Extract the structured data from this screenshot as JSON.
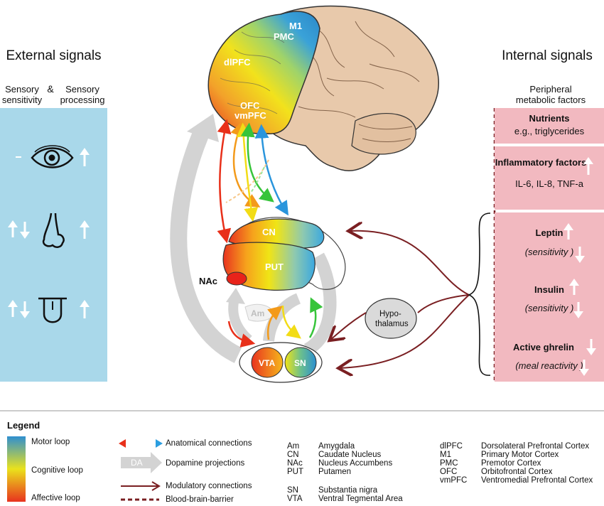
{
  "external": {
    "title": "External signals",
    "col1": "Sensory sensitivity",
    "amp": "&",
    "col2": "Sensory processing",
    "rows": [
      {
        "icon": "eye-icon",
        "left": "–",
        "right": "up"
      },
      {
        "icon": "nose-icon",
        "left": "up-down",
        "right": "up"
      },
      {
        "icon": "tongue-icon",
        "left": "up-down",
        "right": "up"
      }
    ]
  },
  "internal": {
    "title": "Internal signals",
    "subtitle": "Peripheral metabolic factors",
    "nutrients": {
      "title": "Nutrients",
      "value": "e.g., triglycerides"
    },
    "inflammatory": {
      "title": "Inflammatory factors",
      "value": "IL-6, IL-8, TNF-a"
    },
    "leptin": {
      "title": "Leptin",
      "note": "(sensitivity )"
    },
    "insulin": {
      "title": "Insulin",
      "note": "(sensitivity )"
    },
    "ghrelin": {
      "title": "Active ghrelin",
      "note": "(meal reactivity )"
    }
  },
  "brain": {
    "m1": "M1",
    "pmc": "PMC",
    "dlpfc": "dlPFC",
    "ofc": "OFC",
    "vmpfc": "vmPFC",
    "cn": "CN",
    "put": "PUT",
    "nac": "NAc",
    "am": "Am",
    "vta": "VTA",
    "sn": "SN",
    "hypothalamus": "Hypo-thalamus",
    "da": "DA"
  },
  "legend": {
    "title": "Legend",
    "motor": "Motor loop",
    "cognitive": "Cognitive loop",
    "affective": "Affective loop",
    "anatomical": "Anatomical connections",
    "dopamine": "Dopamine projections",
    "da_label": "DA",
    "modulatory": "Modulatory connections",
    "bbb": "Blood-brain-barrier",
    "abbr1": [
      {
        "k": "Am",
        "v": "Amygdala"
      },
      {
        "k": "CN",
        "v": "Caudate Nucleus"
      },
      {
        "k": "NAc",
        "v": "Nucleus Accumbens"
      },
      {
        "k": "PUT",
        "v": "Putamen"
      }
    ],
    "abbr2": [
      {
        "k": "SN",
        "v": "Substantia nigra"
      },
      {
        "k": "VTA",
        "v": "Ventral Tegmental Area"
      }
    ],
    "abbr3": [
      {
        "k": "dlPFC",
        "v": "Dorsolateral Prefrontal Cortex"
      },
      {
        "k": "M1",
        "v": "Primary Motor Cortex"
      },
      {
        "k": "PMC",
        "v": "Premotor Cortex"
      },
      {
        "k": "OFC",
        "v": "Orbitofrontal Cortex"
      },
      {
        "k": "vmPFC",
        "v": "Ventromedial Prefrontal Cortex"
      }
    ]
  },
  "colors": {
    "panel_blue": "#a9d8ea",
    "panel_pink": "#f2b9c0",
    "modulatory": "#7a1f22",
    "dopamine": "#d3d3d3"
  }
}
